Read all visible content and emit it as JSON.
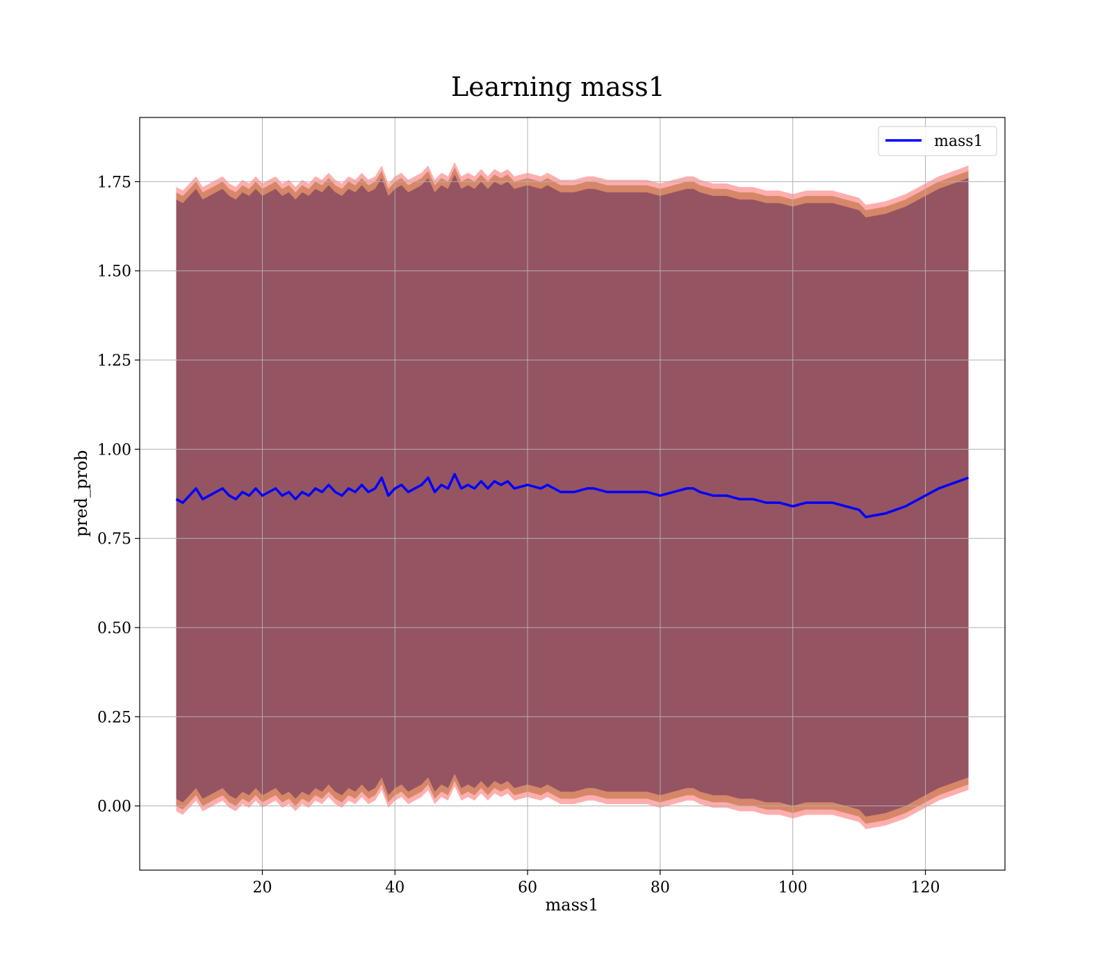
{
  "chart_data": {
    "type": "line",
    "title": "Learning mass1",
    "xlabel": "mass1",
    "ylabel": "pred_prob",
    "xlim": [
      1.5,
      132
    ],
    "ylim": [
      -0.18,
      1.93
    ],
    "xticks": [
      20,
      40,
      60,
      80,
      100,
      120
    ],
    "yticks": [
      0.0,
      0.25,
      0.5,
      0.75,
      1.0,
      1.25,
      1.5,
      1.75
    ],
    "ytick_labels": [
      "0.00",
      "0.25",
      "0.50",
      "0.75",
      "1.00",
      "1.25",
      "1.50",
      "1.75"
    ],
    "grid": true,
    "legend": {
      "position": "top-right",
      "entries": [
        "mass1"
      ]
    },
    "colors": {
      "line": "#0000ff",
      "band_outer": "#ff6b6b",
      "band_middle": "#c87a50",
      "band_inner": "#8e4f62"
    },
    "series": [
      {
        "name": "mass1",
        "x": [
          7,
          8,
          9,
          10,
          11,
          12,
          13,
          14,
          15,
          16,
          17,
          18,
          19,
          20,
          21,
          22,
          23,
          24,
          25,
          26,
          27,
          28,
          29,
          30,
          31,
          32,
          33,
          34,
          35,
          36,
          37,
          38,
          39,
          40,
          41,
          42,
          43,
          44,
          45,
          46,
          47,
          48,
          49,
          50,
          51,
          52,
          53,
          54,
          55,
          56,
          57,
          58,
          60,
          62,
          63,
          65,
          67,
          69,
          70,
          72,
          74,
          76,
          78,
          80,
          82,
          84,
          85,
          86,
          88,
          90,
          92,
          94,
          96,
          98,
          100,
          102,
          104,
          106,
          108,
          110,
          111,
          114,
          117,
          119,
          122,
          126.5
        ],
        "y": [
          0.86,
          0.85,
          0.87,
          0.89,
          0.86,
          0.87,
          0.88,
          0.89,
          0.87,
          0.86,
          0.88,
          0.87,
          0.89,
          0.87,
          0.88,
          0.89,
          0.87,
          0.88,
          0.86,
          0.88,
          0.87,
          0.89,
          0.88,
          0.9,
          0.88,
          0.87,
          0.89,
          0.88,
          0.9,
          0.88,
          0.89,
          0.92,
          0.87,
          0.89,
          0.9,
          0.88,
          0.89,
          0.9,
          0.92,
          0.88,
          0.9,
          0.89,
          0.93,
          0.89,
          0.9,
          0.89,
          0.91,
          0.89,
          0.91,
          0.9,
          0.91,
          0.89,
          0.9,
          0.89,
          0.9,
          0.88,
          0.88,
          0.89,
          0.89,
          0.88,
          0.88,
          0.88,
          0.88,
          0.87,
          0.88,
          0.89,
          0.89,
          0.88,
          0.87,
          0.87,
          0.86,
          0.86,
          0.85,
          0.85,
          0.84,
          0.85,
          0.85,
          0.85,
          0.84,
          0.83,
          0.81,
          0.82,
          0.84,
          0.86,
          0.89,
          0.92
        ],
        "band_outer_halfwidth": 0.875,
        "band_middle_halfwidth": 0.86,
        "band_inner_halfwidth": 0.84
      }
    ]
  }
}
